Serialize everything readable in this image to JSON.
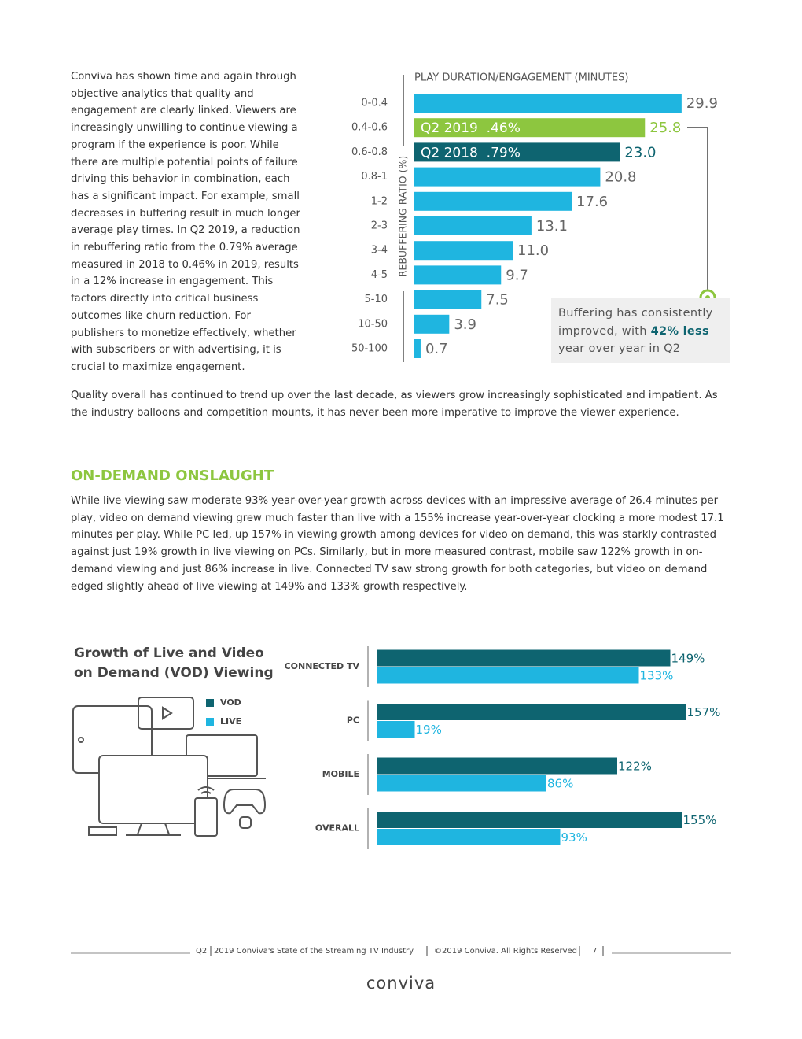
{
  "intro": "Conviva has shown time and again through objective analytics that quality and engagement are clearly linked. Viewers are increasingly unwilling to continue viewing a program if the experience is poor. While there are multiple potential points of failure driving this behavior in combination, each has a significant impact. For example, small decreases in buffering result in much longer average play times. In Q2 2019, a reduction in rebuffering ratio from the 0.79% average measured in 2018 to 0.46% in 2019, results in a 12% increase in engagement. This factors directly into critical business outcomes like churn reduction. For publishers to monetize effectively, whether with subscribers or with advertising, it is crucial to maximize engagement.",
  "quality": "Quality overall has continued to trend up over the last decade, as viewers grow increasingly sophisticated and impatient. As the industry balloons and competition mounts, it has never been more imperative to improve the viewer experience.",
  "section": {
    "heading": "ON-DEMAND ONSLAUGHT",
    "body": "While live viewing saw moderate 93% year-over-year growth across devices with an impressive average of 26.4 minutes per play, video on demand viewing grew much faster than live with a 155% increase year-over-year clocking a more modest 17.1 minutes per play. While PC led, up 157% in viewing growth among devices for video on demand, this was starkly contrasted against just 19% growth in live viewing on PCs. Similarly, but in more measured contrast, mobile saw 122% growth in on-demand viewing and just 86% increase in live. Connected TV saw strong growth for both categories, but video on demand edged slightly ahead of live viewing at 149% and 133% growth respectively."
  },
  "chart_data": [
    {
      "type": "bar",
      "orientation": "horizontal",
      "title": "PLAY DURATION/ENGAGEMENT (MINUTES)",
      "y_label": "REBUFFERING RATIO (%)",
      "categories": [
        "0-0.4",
        "0.4-0.6",
        "0.6-0.8",
        "0.8-1",
        "1-2",
        "2-3",
        "3-4",
        "4-5",
        "5-10",
        "10-50",
        "50-100"
      ],
      "values": [
        29.9,
        25.8,
        23.0,
        20.8,
        17.6,
        13.1,
        11.0,
        9.7,
        7.5,
        3.9,
        0.7
      ],
      "value_labels": [
        "29.9",
        "25.8",
        "23.0",
        "20.8",
        "17.6",
        "13.1",
        "11.0",
        "9.7",
        "7.5",
        "3.9",
        "0.7"
      ],
      "colors": [
        "#1fb5e0",
        "#8dc63f",
        "#0e6470",
        "#1fb5e0",
        "#1fb5e0",
        "#1fb5e0",
        "#1fb5e0",
        "#1fb5e0",
        "#1fb5e0",
        "#1fb5e0",
        "#1fb5e0"
      ],
      "label_colors": [
        "#666666",
        "#8dc63f",
        "#0e6470",
        "#666666",
        "#666666",
        "#666666",
        "#666666",
        "#666666",
        "#666666",
        "#666666",
        "#666666"
      ],
      "xlim": [
        0,
        30
      ],
      "annotations": [
        {
          "category": "0.4-0.6",
          "text": "Q2 2019  .46%"
        },
        {
          "category": "0.6-0.8",
          "text": "Q2 2018  .79%"
        }
      ],
      "callout": [
        "Buffering has consistently improved, with ",
        "42% less",
        " year over year in Q2"
      ]
    },
    {
      "type": "grouped-bar",
      "orientation": "horizontal",
      "title": "Growth of Live and Video on Demand (VOD) Viewing",
      "categories": [
        "CONNECTED TV",
        "PC",
        "MOBILE",
        "OVERALL"
      ],
      "series": [
        {
          "name": "VOD",
          "color": "#0e6470",
          "values": [
            149,
            157,
            122,
            155
          ],
          "value_labels": [
            "149%",
            "157%",
            "122%",
            "155%"
          ]
        },
        {
          "name": "LIVE",
          "color": "#1fb5e0",
          "values": [
            133,
            19,
            86,
            93
          ],
          "value_labels": [
            "133%",
            "19%",
            "86%",
            "93%"
          ]
        }
      ],
      "xlim": [
        0,
        160
      ]
    }
  ],
  "footer": {
    "parts": [
      "Q2",
      "2019 Conviva's State of the Streaming TV Industry",
      "©2019 Conviva. All Rights Reserved",
      "7"
    ],
    "logo": "conviva"
  }
}
